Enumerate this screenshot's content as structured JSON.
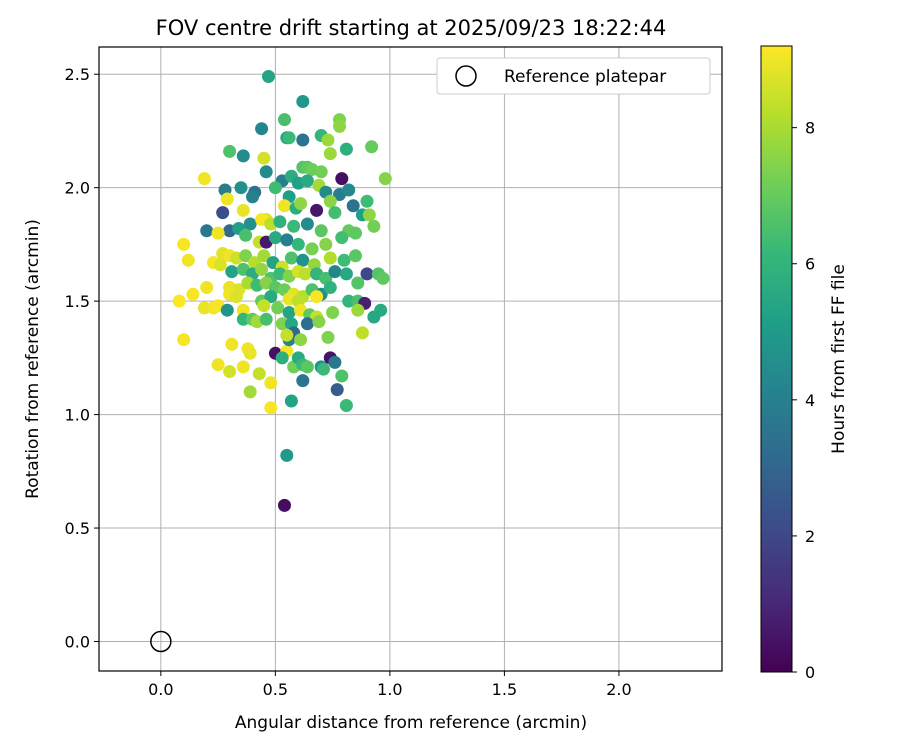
{
  "chart_data": {
    "type": "scatter",
    "title": "FOV centre drift starting at 2025/09/23 18:22:44",
    "xlabel": "Angular distance from reference (arcmin)",
    "ylabel": "Rotation from reference (arcmin)",
    "xlim": [
      -0.27,
      2.45
    ],
    "ylim": [
      -0.13,
      2.62
    ],
    "x_ticks": [
      0.0,
      0.5,
      1.0,
      1.5,
      2.0
    ],
    "x_tick_labels": [
      "0.0",
      "0.5",
      "1.0",
      "1.5",
      "2.0"
    ],
    "y_ticks": [
      0.0,
      0.5,
      1.0,
      1.5,
      2.0,
      2.5
    ],
    "y_tick_labels": [
      "0.0",
      "0.5",
      "1.0",
      "1.5",
      "2.0",
      "2.5"
    ],
    "grid": true,
    "legend": {
      "position": "top-right",
      "entries": [
        "Reference platepar"
      ]
    },
    "reference_point": {
      "x": 0.0,
      "y": 0.0,
      "label": "Reference platepar"
    },
    "colorbar": {
      "label": "Hours from first FF file",
      "colormap": "viridis",
      "range": [
        0,
        9.2
      ],
      "ticks": [
        0,
        2,
        4,
        6,
        8
      ],
      "tick_labels": [
        "0",
        "2",
        "4",
        "6",
        "8"
      ]
    },
    "series": [
      {
        "name": "FOV centre drift",
        "points": [
          [
            0.47,
            2.49,
            5.4
          ],
          [
            0.62,
            2.38,
            4.9
          ],
          [
            0.54,
            2.3,
            6.5
          ],
          [
            0.78,
            2.3,
            7.4
          ],
          [
            0.78,
            2.27,
            7.6
          ],
          [
            0.44,
            2.26,
            4.2
          ],
          [
            0.55,
            2.22,
            5.4
          ],
          [
            0.56,
            2.22,
            6.2
          ],
          [
            0.62,
            2.21,
            3.5
          ],
          [
            0.7,
            2.23,
            6.1
          ],
          [
            0.73,
            2.21,
            7.8
          ],
          [
            0.92,
            2.18,
            7.0
          ],
          [
            0.3,
            2.16,
            6.6
          ],
          [
            0.36,
            2.14,
            4.5
          ],
          [
            0.45,
            2.13,
            8.6
          ],
          [
            0.81,
            2.17,
            5.8
          ],
          [
            0.74,
            2.15,
            7.8
          ],
          [
            0.46,
            2.07,
            4.4
          ],
          [
            0.62,
            2.09,
            6.7
          ],
          [
            0.64,
            2.09,
            6.9
          ],
          [
            0.66,
            2.08,
            7.1
          ],
          [
            0.7,
            2.07,
            7.2
          ],
          [
            0.19,
            2.04,
            9.0
          ],
          [
            0.53,
            2.03,
            3.9
          ],
          [
            0.57,
            2.05,
            5.7
          ],
          [
            0.79,
            2.04,
            0.4
          ],
          [
            0.98,
            2.04,
            7.5
          ],
          [
            0.28,
            1.99,
            3.8
          ],
          [
            0.35,
            2.0,
            4.6
          ],
          [
            0.41,
            1.98,
            3.5
          ],
          [
            0.5,
            2.0,
            6.3
          ],
          [
            0.6,
            2.02,
            5.2
          ],
          [
            0.64,
            2.03,
            5.6
          ],
          [
            0.69,
            2.01,
            7.9
          ],
          [
            0.72,
            1.98,
            4.4
          ],
          [
            0.78,
            1.97,
            3.9
          ],
          [
            0.82,
            1.99,
            4.3
          ],
          [
            0.9,
            1.94,
            6.3
          ],
          [
            0.29,
            1.95,
            9.0
          ],
          [
            0.4,
            1.96,
            4.0
          ],
          [
            0.56,
            1.96,
            5.1
          ],
          [
            0.74,
            1.94,
            7.6
          ],
          [
            0.84,
            1.92,
            3.5
          ],
          [
            0.27,
            1.89,
            2.2
          ],
          [
            0.36,
            1.9,
            8.9
          ],
          [
            0.46,
            1.86,
            8.8
          ],
          [
            0.54,
            1.92,
            9.0
          ],
          [
            0.59,
            1.91,
            5.7
          ],
          [
            0.61,
            1.93,
            7.6
          ],
          [
            0.68,
            1.9,
            0.6
          ],
          [
            0.76,
            1.89,
            6.4
          ],
          [
            0.88,
            1.88,
            5.1
          ],
          [
            0.91,
            1.88,
            7.6
          ],
          [
            0.3,
            1.81,
            3.2
          ],
          [
            0.34,
            1.82,
            5.2
          ],
          [
            0.39,
            1.84,
            4.6
          ],
          [
            0.44,
            1.86,
            9.1
          ],
          [
            0.48,
            1.84,
            8.3
          ],
          [
            0.52,
            1.85,
            5.9
          ],
          [
            0.58,
            1.83,
            6.2
          ],
          [
            0.64,
            1.84,
            4.4
          ],
          [
            0.7,
            1.81,
            6.8
          ],
          [
            0.82,
            1.81,
            7.0
          ],
          [
            0.93,
            1.83,
            7.2
          ],
          [
            0.2,
            1.81,
            3.6
          ],
          [
            0.25,
            1.8,
            9.0
          ],
          [
            0.37,
            1.79,
            6.5
          ],
          [
            0.43,
            1.76,
            8.4
          ],
          [
            0.46,
            1.76,
            0.6
          ],
          [
            0.5,
            1.78,
            5.6
          ],
          [
            0.55,
            1.77,
            4.0
          ],
          [
            0.6,
            1.75,
            6.1
          ],
          [
            0.66,
            1.73,
            7.3
          ],
          [
            0.72,
            1.75,
            7.5
          ],
          [
            0.79,
            1.78,
            6.4
          ],
          [
            0.85,
            1.8,
            6.9
          ],
          [
            0.1,
            1.75,
            9.1
          ],
          [
            0.27,
            1.71,
            8.8
          ],
          [
            0.3,
            1.7,
            9.0
          ],
          [
            0.33,
            1.69,
            8.5
          ],
          [
            0.37,
            1.7,
            7.4
          ],
          [
            0.41,
            1.67,
            8.2
          ],
          [
            0.45,
            1.7,
            7.9
          ],
          [
            0.49,
            1.67,
            5.3
          ],
          [
            0.53,
            1.65,
            8.5
          ],
          [
            0.57,
            1.69,
            6.6
          ],
          [
            0.62,
            1.68,
            4.7
          ],
          [
            0.67,
            1.66,
            7.7
          ],
          [
            0.74,
            1.69,
            8.1
          ],
          [
            0.8,
            1.68,
            6.3
          ],
          [
            0.85,
            1.7,
            6.8
          ],
          [
            0.12,
            1.68,
            9.0
          ],
          [
            0.23,
            1.67,
            9.1
          ],
          [
            0.26,
            1.66,
            8.7
          ],
          [
            0.31,
            1.63,
            5.3
          ],
          [
            0.36,
            1.64,
            6.6
          ],
          [
            0.4,
            1.62,
            5.7
          ],
          [
            0.44,
            1.64,
            7.7
          ],
          [
            0.48,
            1.6,
            6.6
          ],
          [
            0.52,
            1.62,
            6.2
          ],
          [
            0.56,
            1.61,
            7.4
          ],
          [
            0.6,
            1.63,
            8.6
          ],
          [
            0.63,
            1.62,
            8.3
          ],
          [
            0.68,
            1.62,
            6.0
          ],
          [
            0.72,
            1.6,
            6.5
          ],
          [
            0.76,
            1.63,
            4.2
          ],
          [
            0.81,
            1.62,
            5.5
          ],
          [
            0.9,
            1.62,
            2.0
          ],
          [
            0.95,
            1.62,
            6.7
          ],
          [
            0.97,
            1.6,
            6.9
          ],
          [
            0.2,
            1.56,
            9.0
          ],
          [
            0.3,
            1.56,
            8.9
          ],
          [
            0.34,
            1.55,
            8.7
          ],
          [
            0.38,
            1.58,
            8.0
          ],
          [
            0.42,
            1.57,
            6.3
          ],
          [
            0.46,
            1.58,
            7.5
          ],
          [
            0.5,
            1.56,
            6.8
          ],
          [
            0.54,
            1.55,
            7.1
          ],
          [
            0.58,
            1.53,
            8.8
          ],
          [
            0.62,
            1.52,
            8.2
          ],
          [
            0.66,
            1.55,
            6.6
          ],
          [
            0.7,
            1.53,
            4.5
          ],
          [
            0.74,
            1.56,
            5.9
          ],
          [
            0.86,
            1.58,
            6.7
          ],
          [
            0.14,
            1.53,
            9.1
          ],
          [
            0.3,
            1.53,
            9.0
          ],
          [
            0.33,
            1.52,
            8.7
          ],
          [
            0.44,
            1.5,
            7.0
          ],
          [
            0.48,
            1.52,
            5.6
          ],
          [
            0.56,
            1.51,
            8.9
          ],
          [
            0.6,
            1.5,
            8.3
          ],
          [
            0.68,
            1.52,
            9.1
          ],
          [
            0.82,
            1.5,
            6.0
          ],
          [
            0.86,
            1.5,
            6.5
          ],
          [
            0.89,
            1.49,
            0.8
          ],
          [
            0.08,
            1.5,
            9.2
          ],
          [
            0.19,
            1.47,
            8.9
          ],
          [
            0.23,
            1.47,
            9.0
          ],
          [
            0.25,
            1.48,
            9.1
          ],
          [
            0.29,
            1.46,
            4.8
          ],
          [
            0.36,
            1.46,
            9.0
          ],
          [
            0.45,
            1.48,
            8.4
          ],
          [
            0.51,
            1.47,
            7.2
          ],
          [
            0.56,
            1.45,
            5.4
          ],
          [
            0.61,
            1.46,
            9.0
          ],
          [
            0.65,
            1.44,
            6.9
          ],
          [
            0.68,
            1.43,
            8.4
          ],
          [
            0.75,
            1.45,
            7.4
          ],
          [
            0.86,
            1.46,
            7.8
          ],
          [
            0.96,
            1.46,
            5.6
          ],
          [
            0.93,
            1.43,
            5.5
          ],
          [
            0.36,
            1.42,
            6.1
          ],
          [
            0.4,
            1.42,
            6.9
          ],
          [
            0.42,
            1.41,
            7.9
          ],
          [
            0.46,
            1.42,
            6.5
          ],
          [
            0.53,
            1.4,
            7.4
          ],
          [
            0.57,
            1.4,
            5.5
          ],
          [
            0.64,
            1.4,
            3.3
          ],
          [
            0.69,
            1.41,
            7.5
          ],
          [
            0.1,
            1.33,
            9.1
          ],
          [
            0.31,
            1.31,
            9.0
          ],
          [
            0.38,
            1.29,
            9.0
          ],
          [
            0.39,
            1.27,
            8.9
          ],
          [
            0.5,
            1.27,
            0.4
          ],
          [
            0.55,
            1.28,
            9.1
          ],
          [
            0.56,
            1.33,
            4.1
          ],
          [
            0.58,
            1.36,
            3.2
          ],
          [
            0.55,
            1.35,
            8.4
          ],
          [
            0.61,
            1.33,
            7.6
          ],
          [
            0.73,
            1.34,
            7.4
          ],
          [
            0.88,
            1.36,
            8.3
          ],
          [
            0.25,
            1.22,
            9.0
          ],
          [
            0.3,
            1.19,
            8.6
          ],
          [
            0.36,
            1.21,
            9.0
          ],
          [
            0.43,
            1.18,
            8.4
          ],
          [
            0.48,
            1.14,
            9.0
          ],
          [
            0.53,
            1.25,
            5.8
          ],
          [
            0.58,
            1.21,
            7.2
          ],
          [
            0.6,
            1.25,
            5.6
          ],
          [
            0.62,
            1.22,
            6.2
          ],
          [
            0.64,
            1.21,
            6.8
          ],
          [
            0.7,
            1.21,
            4.8
          ],
          [
            0.71,
            1.2,
            6.2
          ],
          [
            0.74,
            1.25,
            0.5
          ],
          [
            0.76,
            1.23,
            3.7
          ],
          [
            0.79,
            1.17,
            6.6
          ],
          [
            0.62,
            1.15,
            3.6
          ],
          [
            0.77,
            1.11,
            2.7
          ],
          [
            0.39,
            1.1,
            7.9
          ],
          [
            0.48,
            1.03,
            9.1
          ],
          [
            0.57,
            1.06,
            5.3
          ],
          [
            0.81,
            1.04,
            6.2
          ],
          [
            0.55,
            0.82,
            5.0
          ],
          [
            0.54,
            0.6,
            0.3
          ]
        ]
      }
    ]
  }
}
